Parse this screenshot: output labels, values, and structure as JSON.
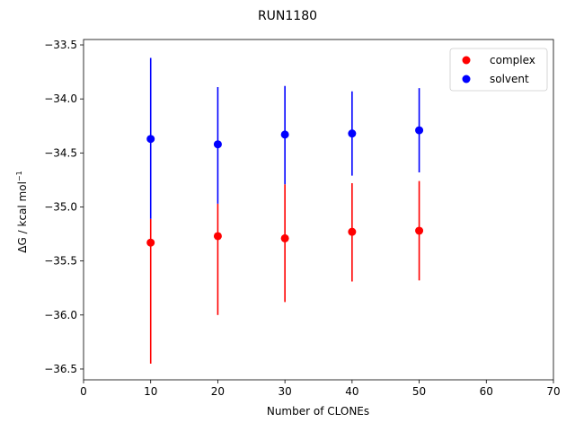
{
  "chart_data": {
    "type": "scatter",
    "title": "RUN1180",
    "xlabel": "Number of CLONEs",
    "ylabel_text": "ΔG / kcal mol",
    "ylabel_superscript": "−1",
    "xlim": [
      0,
      70
    ],
    "ylim": [
      -36.6,
      -33.45
    ],
    "xticks": [
      0,
      10,
      20,
      30,
      40,
      50,
      60,
      70
    ],
    "yticks": [
      -36.5,
      -36.0,
      -35.5,
      -35.0,
      -34.5,
      -34.0,
      -33.5
    ],
    "xtick_labels": [
      "0",
      "10",
      "20",
      "30",
      "40",
      "50",
      "60",
      "70"
    ],
    "ytick_labels": [
      "−36.5",
      "−36.0",
      "−35.5",
      "−35.0",
      "−34.5",
      "−34.0",
      "−33.5"
    ],
    "grid": false,
    "legend_position": "top-right",
    "series": [
      {
        "name": "complex",
        "color": "#ff0000",
        "points": [
          {
            "x": 10,
            "y": -35.33,
            "err_low": -36.45,
            "err_high": -35.11
          },
          {
            "x": 20,
            "y": -35.27,
            "err_low": -36.0,
            "err_high": -34.97
          },
          {
            "x": 30,
            "y": -35.29,
            "err_low": -35.88,
            "err_high": -34.79
          },
          {
            "x": 40,
            "y": -35.23,
            "err_low": -35.69,
            "err_high": -34.78
          },
          {
            "x": 50,
            "y": -35.22,
            "err_low": -35.68,
            "err_high": -34.76
          }
        ]
      },
      {
        "name": "solvent",
        "color": "#0000ff",
        "points": [
          {
            "x": 10,
            "y": -34.37,
            "err_low": -35.11,
            "err_high": -33.62
          },
          {
            "x": 20,
            "y": -34.42,
            "err_low": -34.97,
            "err_high": -33.89
          },
          {
            "x": 30,
            "y": -34.33,
            "err_low": -34.79,
            "err_high": -33.88
          },
          {
            "x": 40,
            "y": -34.32,
            "err_low": -34.71,
            "err_high": -33.93
          },
          {
            "x": 50,
            "y": -34.29,
            "err_low": -34.68,
            "err_high": -33.9
          }
        ]
      }
    ]
  }
}
